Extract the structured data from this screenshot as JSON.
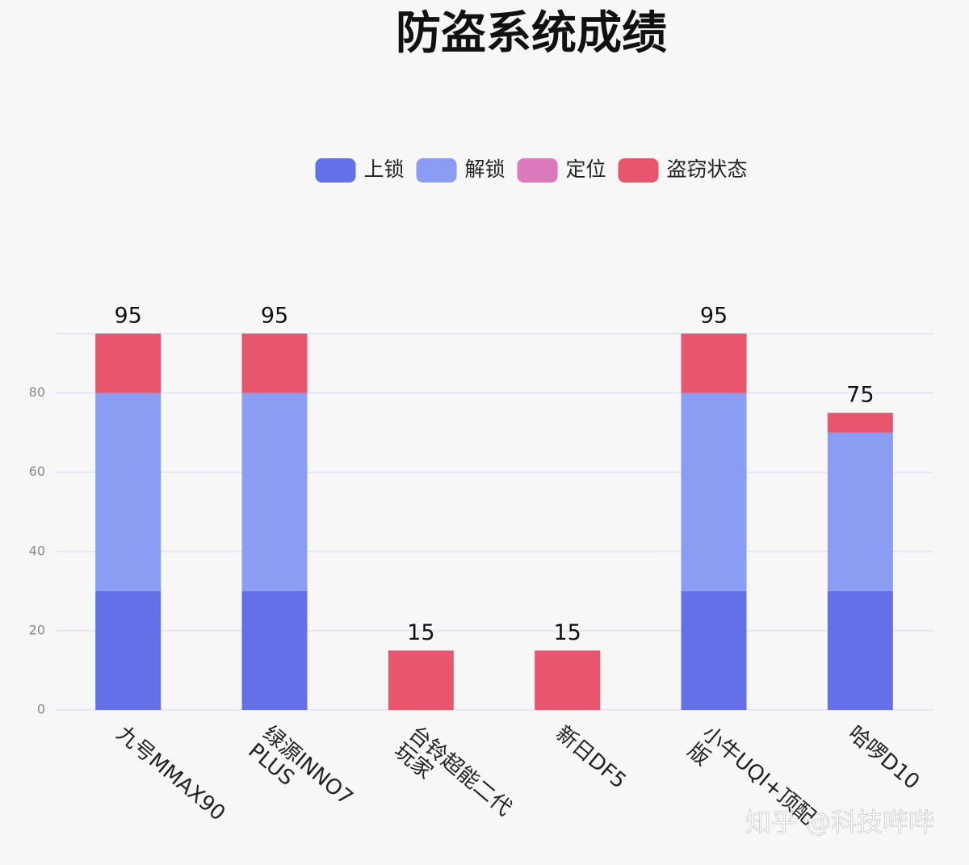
{
  "chart_data": {
    "type": "bar",
    "stacked": true,
    "title": "防盗系统成绩",
    "categories": [
      "九号MMAX90",
      "绿源INNO7\nPLUS",
      "台铃超能二代\n玩家",
      "新日DF5",
      "小牛UQI+顶配\n版",
      "哈啰D10"
    ],
    "series": [
      {
        "name": "上锁",
        "color": "#6370e8",
        "values": [
          30,
          30,
          0,
          0,
          30,
          30
        ]
      },
      {
        "name": "解锁",
        "color": "#8b9cf3",
        "values": [
          50,
          50,
          0,
          0,
          50,
          40
        ]
      },
      {
        "name": "定位",
        "color": "#dc78bc",
        "values": [
          0,
          0,
          0,
          0,
          0,
          0
        ]
      },
      {
        "name": "盗窃状态",
        "color": "#e8566e",
        "values": [
          15,
          15,
          15,
          15,
          15,
          5
        ]
      }
    ],
    "totals": [
      95,
      95,
      15,
      15,
      95,
      75
    ],
    "ylim": [
      0,
      95
    ],
    "yticks": [
      0,
      20,
      40,
      60,
      80
    ],
    "grid": true,
    "legend": "top",
    "watermark": "知乎 @科技哔哔"
  }
}
